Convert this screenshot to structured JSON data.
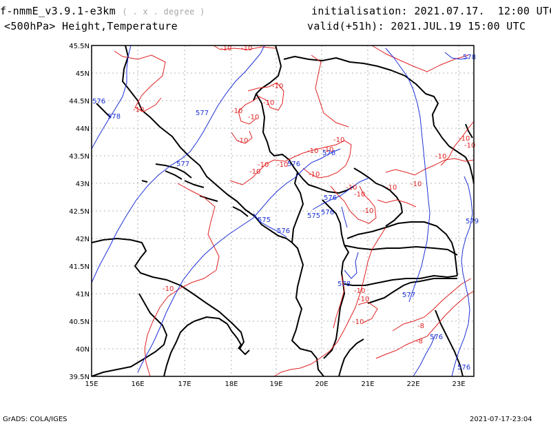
{
  "header": {
    "model": "f-nmmE_v3.9.1-e3km",
    "projection": "( . x . degree )",
    "level_variables": "<500hPa> Height,Temperature",
    "init_label": "initialisation:",
    "init_value": "2021.07.17.  12:00 UTC",
    "valid_label": "valid(+51h):",
    "valid_value": "2021.JUL.19 15:00 UTC"
  },
  "footer": {
    "credit": "GrADS: COLA/IGES",
    "timestamp": "2021-07-17-23:04"
  },
  "axes": {
    "lat_labels": [
      "45.5N",
      "45N",
      "44.5N",
      "44N",
      "43.5N",
      "43N",
      "42.5N",
      "42N",
      "41.5N",
      "41N",
      "40.5N",
      "40N",
      "39.5N"
    ],
    "lon_labels": [
      "15E",
      "16E",
      "17E",
      "18E",
      "19E",
      "20E",
      "21E",
      "22E",
      "23E"
    ]
  },
  "colors": {
    "height_contour": "#1a2fd6",
    "temperature_contour": "#e02020",
    "coastline": "#000000",
    "grid": "#9a9a9a"
  },
  "contour_labels": {
    "height": [
      "576",
      "578",
      "577",
      "577",
      "576",
      "576",
      "575",
      "576",
      "575",
      "576",
      "576",
      "578",
      "577",
      "578",
      "579",
      "576",
      "576"
    ],
    "temperature": [
      "-10",
      "-10",
      "-10",
      "-10",
      "-10",
      "-10",
      "-10",
      "-10",
      "-10",
      "-10",
      "-10",
      "-10",
      "-10",
      "-10",
      "-10",
      "-10",
      "-10",
      "-10",
      "-10",
      "-10",
      "-10",
      "-10",
      "-10",
      "-10",
      "-8",
      "-8",
      "-10",
      "-10",
      "-10"
    ]
  }
}
